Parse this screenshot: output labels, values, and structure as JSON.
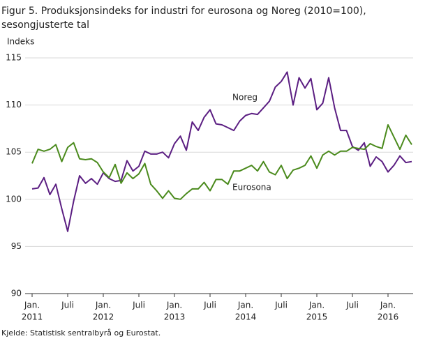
{
  "chart_data": {
    "type": "line",
    "title_lines": [
      "Figur 5. Produksjonsindeks for industri for eurosona og Noreg (2010=100),",
      "sesongjusterte tal"
    ],
    "y_label": "Indeks",
    "source": "Kjelde: Statistisk sentralbyrå og Eurostat.",
    "categories": [
      "Jan.",
      null,
      null,
      null,
      null,
      null,
      "Juli",
      null,
      null,
      null,
      null,
      null,
      "Jan.",
      null,
      null,
      null,
      null,
      null,
      "Juli",
      null,
      null,
      null,
      null,
      null,
      "Jan.",
      null,
      null,
      null,
      null,
      null,
      "Juli",
      null,
      null,
      null,
      null,
      null,
      "Jan.",
      null,
      null,
      null,
      null,
      null,
      "Juli",
      null,
      null,
      null,
      null,
      null,
      "Jan.",
      null,
      null,
      null,
      null,
      null,
      "Juli",
      null,
      null,
      null,
      null,
      null,
      "Jan.",
      null,
      null,
      null,
      null
    ],
    "category_years": [
      "2011",
      null,
      null,
      null,
      null,
      null,
      null,
      null,
      null,
      null,
      null,
      null,
      "2012",
      null,
      null,
      null,
      null,
      null,
      null,
      null,
      null,
      null,
      null,
      null,
      "2013",
      null,
      null,
      null,
      null,
      null,
      null,
      null,
      null,
      null,
      null,
      null,
      "2014",
      null,
      null,
      null,
      null,
      null,
      null,
      null,
      null,
      null,
      null,
      null,
      "2015",
      null,
      null,
      null,
      null,
      null,
      null,
      null,
      null,
      null,
      null,
      null,
      "2016",
      null,
      null,
      null,
      null
    ],
    "ylim": [
      90,
      115
    ],
    "yticks": [
      90,
      95,
      100,
      105,
      110,
      115
    ],
    "grid": true,
    "series": [
      {
        "name": "Noreg",
        "color": "#5b1e82",
        "values": [
          101.1,
          101.2,
          102.3,
          100.5,
          101.6,
          99.0,
          96.6,
          99.8,
          102.5,
          101.7,
          102.2,
          101.6,
          102.8,
          102.2,
          101.9,
          102.0,
          104.1,
          103.0,
          103.5,
          105.1,
          104.8,
          104.8,
          105.0,
          104.4,
          105.9,
          106.7,
          105.2,
          108.2,
          107.3,
          108.7,
          109.5,
          108.0,
          107.9,
          107.6,
          107.3,
          108.3,
          108.9,
          109.1,
          109.0,
          109.7,
          110.4,
          111.9,
          112.5,
          113.5,
          110.0,
          112.9,
          111.8,
          112.8,
          109.5,
          110.2,
          112.9,
          109.7,
          107.3,
          107.3,
          105.6,
          105.2,
          106.0,
          103.5,
          104.5,
          104.0,
          102.9,
          103.6,
          104.6,
          103.9,
          104.0
        ]
      },
      {
        "name": "Eurosona",
        "color": "#4a8a1c",
        "values": [
          103.8,
          105.3,
          105.1,
          105.3,
          105.8,
          104.0,
          105.5,
          106.0,
          104.3,
          104.2,
          104.3,
          103.9,
          102.9,
          102.3,
          103.7,
          101.7,
          102.8,
          102.2,
          102.7,
          103.8,
          101.6,
          100.9,
          100.1,
          100.9,
          100.1,
          100.0,
          100.6,
          101.1,
          101.1,
          101.8,
          100.9,
          102.1,
          102.1,
          101.6,
          103.0,
          103.0,
          103.3,
          103.6,
          103.0,
          104.0,
          102.9,
          102.6,
          103.6,
          102.2,
          103.1,
          103.3,
          103.6,
          104.6,
          103.3,
          104.7,
          105.1,
          104.7,
          105.1,
          105.1,
          105.5,
          105.4,
          105.3,
          105.9,
          105.6,
          105.4,
          107.9,
          106.6,
          105.3,
          106.8,
          105.8
        ]
      }
    ]
  }
}
